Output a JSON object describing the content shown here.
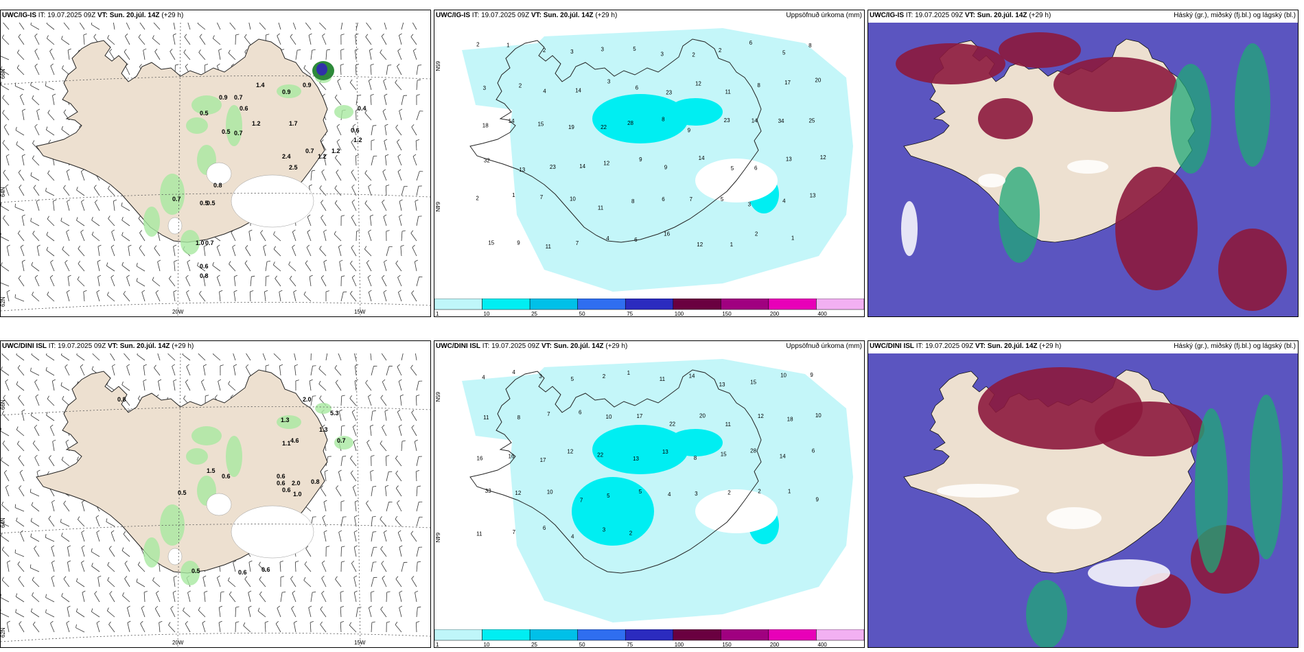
{
  "run_top": {
    "model_prefix": "UWC/IG-IS",
    "it_text": " IT: 19.07.2025 09Z ",
    "vt_prefix": "VT:",
    "vt_value": "Sun. 20.júl. 14Z",
    "lead": " (+29 h)"
  },
  "run_bottom": {
    "model_prefix": "UWC/DINI ISL",
    "it_text": " IT: 19.07.2025 09Z ",
    "vt_prefix": "VT:",
    "vt_value": "Sun. 20.júl. 14Z",
    "lead": " (+29 h)"
  },
  "precip_title": "Uppsöfnuð úrkoma (mm)",
  "cloud_title": "Háský (gr.), miðský (fj.bl.) og lágský (bl.)",
  "axes": {
    "lat_top": "66N",
    "lat_mid": "64N",
    "lat_low": "62N",
    "lon_left": "20W",
    "lon_right": "15W",
    "precip_lat_top": "65N",
    "precip_lat_mid": "64N"
  },
  "colorbar": {
    "ticks": [
      "1",
      "10",
      "25",
      "50",
      "75",
      "100",
      "150",
      "200",
      "400"
    ],
    "colors": [
      "#bff6f9",
      "#00eef2",
      "#00c0e8",
      "#2f6ef0",
      "#2b2bbf",
      "#6a0040",
      "#a00080",
      "#e800b8",
      "#f2b0f2"
    ]
  },
  "values": {
    "wind_top": [
      "0.9",
      "0.7",
      "0.6",
      "1.4",
      "0.9",
      "0.9",
      "1.2",
      "0.5",
      "0.5",
      "0.7",
      "1.7",
      "0.7",
      "0.6",
      "1.2",
      "1.2",
      "2.4",
      "2.5",
      "1.2",
      "0.8",
      "0.5",
      "0.5",
      "1.0",
      "0.7",
      "0.6",
      "0.8",
      "0.7",
      "0.4"
    ],
    "wind_bottom": [
      "0.8",
      "2.0",
      "1.3",
      "5.3",
      "1.3",
      "4.6",
      "1.1",
      "0.7",
      "1.5",
      "0.6",
      "0.6",
      "0.6",
      "2.0",
      "0.8",
      "0.6",
      "1.0",
      "0.5",
      "0.5",
      "0.6",
      "0.6"
    ],
    "precip_top": [
      "2",
      "1",
      "2",
      "3",
      "3",
      "5",
      "3",
      "2",
      "2",
      "6",
      "5",
      "8",
      "3",
      "2",
      "4",
      "14",
      "3",
      "6",
      "23",
      "12",
      "11",
      "8",
      "17",
      "20",
      "18",
      "14",
      "15",
      "19",
      "22",
      "28",
      "8",
      "9",
      "23",
      "14",
      "34",
      "25",
      "32",
      "13",
      "23",
      "14",
      "12",
      "9",
      "9",
      "14",
      "5",
      "6",
      "13",
      "12",
      "2",
      "1",
      "7",
      "10",
      "11",
      "8",
      "6",
      "7",
      "5",
      "3",
      "4",
      "13",
      "15",
      "9",
      "11",
      "7",
      "4",
      "6",
      "16",
      "12",
      "1",
      "2",
      "1"
    ],
    "precip_bottom": [
      "4",
      "4",
      "3",
      "5",
      "2",
      "1",
      "11",
      "14",
      "13",
      "15",
      "10",
      "9",
      "11",
      "8",
      "7",
      "6",
      "10",
      "17",
      "22",
      "20",
      "11",
      "12",
      "18",
      "10",
      "16",
      "16",
      "17",
      "12",
      "22",
      "13",
      "13",
      "8",
      "15",
      "28",
      "14",
      "6",
      "33",
      "12",
      "10",
      "7",
      "5",
      "5",
      "4",
      "3",
      "2",
      "2",
      "1",
      "9",
      "11",
      "7",
      "6",
      "4",
      "3",
      "2"
    ]
  }
}
